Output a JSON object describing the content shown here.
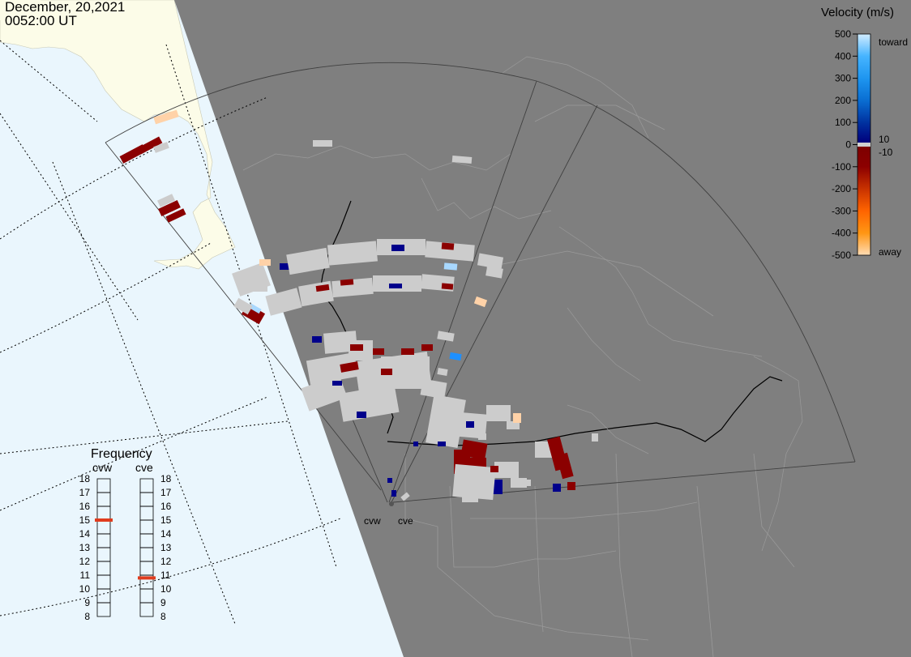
{
  "header": {
    "date": "December, 20,2021",
    "time": "0052:00 UT"
  },
  "colors": {
    "ocean": "#eaf6fd",
    "land": "#fcfce8",
    "night": "#7f7f7f",
    "scatter_gray": "#cccccc",
    "dark_red": "#8b0000",
    "dark_blue": "#00008b",
    "mid_blue": "#1e90ff",
    "light_blue": "#a8d8ff",
    "peach": "#ffd2a8",
    "legend_red": "#e03c1e"
  },
  "velocity_legend": {
    "title": "Velocity (m/s)",
    "ticks": [
      "500",
      "400",
      "300",
      "200",
      "100",
      "0",
      "-100",
      "-200",
      "-300",
      "-400",
      "-500"
    ],
    "tick_values": [
      500,
      400,
      300,
      200,
      100,
      0,
      -100,
      -200,
      -300,
      -400,
      -500
    ],
    "toward_label": "toward",
    "away_label": "away",
    "plus_ten_label": "10",
    "minus_ten_label": "-10",
    "color_stops": [
      {
        "v": 500,
        "color": "#d2ecff"
      },
      {
        "v": 400,
        "color": "#46b4ff"
      },
      {
        "v": 300,
        "color": "#1e96f0"
      },
      {
        "v": 200,
        "color": "#0a6ed2"
      },
      {
        "v": 100,
        "color": "#0032a0"
      },
      {
        "v": 10,
        "color": "#00007d"
      },
      {
        "v": -10,
        "color": "#7d0000"
      },
      {
        "v": -100,
        "color": "#8c0000"
      },
      {
        "v": -200,
        "color": "#c83200"
      },
      {
        "v": -300,
        "color": "#ff6400"
      },
      {
        "v": -400,
        "color": "#ff9614"
      },
      {
        "v": -500,
        "color": "#ffdcb4"
      }
    ]
  },
  "frequency_legend": {
    "title": "Frequency",
    "radars": [
      {
        "name": "cvw",
        "value": 15
      },
      {
        "name": "cve",
        "value": 10.8
      }
    ],
    "ticks": [
      "18",
      "17",
      "16",
      "15",
      "14",
      "13",
      "12",
      "11",
      "10",
      "9",
      "8"
    ],
    "tick_values": [
      18,
      17,
      16,
      15,
      14,
      13,
      12,
      11,
      10,
      9,
      8
    ]
  },
  "radar_labels": {
    "west": "cvw",
    "east": "cve"
  }
}
